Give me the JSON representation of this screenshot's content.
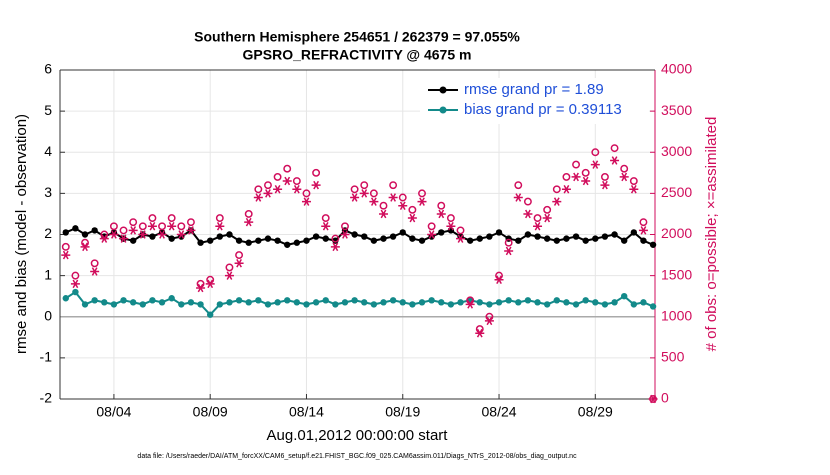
{
  "chart_data": {
    "type": "line",
    "title": "Southern Hemisphere 254651 / 262379 = 97.055%",
    "subtitle": "GPSRO_REFRACTIVITY @ 4675 m",
    "xlabel": "Aug.01,2012 00:00:00 start",
    "ylabel": "rmse and bias (model - observation)",
    "y2label": "# of obs: o=possible; ×=assimilated",
    "footnote": "data file: /Users/raeder/DAI/ATM_forcXX/CAM6_setup/f.e21.FHIST_BGC.f09_025.CAM6assim.011/Diags_NTrS_2012-08/obs_diag_output.nc",
    "x": [
      0.5,
      1,
      1.5,
      2,
      2.5,
      3,
      3.5,
      4,
      4.5,
      5,
      5.5,
      6,
      6.5,
      7,
      7.5,
      8,
      8.5,
      9,
      9.5,
      10,
      10.5,
      11,
      11.5,
      12,
      12.5,
      13,
      13.5,
      14,
      14.5,
      15,
      15.5,
      16,
      16.5,
      17,
      17.5,
      18,
      18.5,
      19,
      19.5,
      20,
      20.5,
      21,
      21.5,
      22,
      22.5,
      23,
      23.5,
      24,
      24.5,
      25,
      25.5,
      26,
      26.5,
      27,
      27.5,
      28,
      28.5,
      29,
      29.5,
      30,
      30.5,
      31
    ],
    "xlim": [
      0.2,
      31.1
    ],
    "xticks": [
      {
        "value": 3,
        "label": "08/04"
      },
      {
        "value": 8,
        "label": "08/09"
      },
      {
        "value": 13,
        "label": "08/14"
      },
      {
        "value": 18,
        "label": "08/19"
      },
      {
        "value": 23,
        "label": "08/24"
      },
      {
        "value": 28,
        "label": "08/29"
      }
    ],
    "ylim": [
      -2,
      6
    ],
    "yticks": [
      -2,
      -1,
      0,
      1,
      2,
      3,
      4,
      5,
      6
    ],
    "y2lim": [
      0,
      4000
    ],
    "y2ticks": [
      0,
      500,
      1000,
      1500,
      2000,
      2500,
      3000,
      3500,
      4000
    ],
    "grid": true,
    "zero_line_color": "#aaaaaa",
    "legend": "upper right",
    "series": [
      {
        "name": "rmse grand pr = 1.89",
        "color": "#000000",
        "marker": "dot-line",
        "values": [
          2.05,
          2.15,
          2.0,
          2.1,
          1.95,
          2.05,
          1.9,
          1.85,
          2.0,
          1.95,
          2.05,
          1.9,
          1.95,
          2.1,
          1.8,
          1.85,
          1.95,
          2.0,
          1.85,
          1.8,
          1.85,
          1.9,
          1.85,
          1.75,
          1.8,
          1.85,
          1.95,
          1.9,
          1.85,
          2.1,
          2.0,
          1.95,
          1.85,
          1.9,
          1.95,
          2.05,
          1.9,
          1.85,
          1.95,
          2.05,
          2.1,
          1.95,
          1.85,
          1.9,
          1.95,
          2.05,
          1.9,
          1.85,
          2.0,
          1.95,
          1.9,
          1.85,
          1.9,
          1.95,
          1.85,
          1.9,
          1.95,
          2.0,
          1.85,
          2.05,
          1.85,
          1.75
        ]
      },
      {
        "name": "bias grand pr = 0.39113",
        "color": "#138a8a",
        "marker": "dot-line",
        "values": [
          0.45,
          0.6,
          0.3,
          0.4,
          0.35,
          0.3,
          0.4,
          0.35,
          0.3,
          0.4,
          0.35,
          0.45,
          0.3,
          0.35,
          0.3,
          0.05,
          0.3,
          0.35,
          0.4,
          0.35,
          0.4,
          0.3,
          0.35,
          0.4,
          0.35,
          0.3,
          0.35,
          0.4,
          0.3,
          0.35,
          0.4,
          0.35,
          0.3,
          0.35,
          0.4,
          0.35,
          0.3,
          0.35,
          0.4,
          0.35,
          0.3,
          0.35,
          0.4,
          0.35,
          0.3,
          0.35,
          0.4,
          0.35,
          0.4,
          0.35,
          0.3,
          0.4,
          0.35,
          0.3,
          0.4,
          0.35,
          0.3,
          0.35,
          0.5,
          0.3,
          0.35,
          0.25
        ]
      },
      {
        "color": "#d10d5c",
        "marker": "circle",
        "axis": "y2",
        "values": [
          1850,
          1500,
          1900,
          1650,
          2000,
          2100,
          2050,
          2150,
          2100,
          2200,
          2100,
          2200,
          2100,
          2150,
          1400,
          1450,
          2200,
          1600,
          1750,
          2250,
          2550,
          2600,
          2700,
          2800,
          2650,
          2500,
          2750,
          2200,
          1950,
          2100,
          2550,
          2600,
          2500,
          2350,
          2600,
          2450,
          2300,
          2500,
          2100,
          2350,
          2200,
          2050,
          1200,
          850,
          1000,
          1500,
          1900,
          2600,
          2400,
          2200,
          2300,
          2550,
          2700,
          2850,
          2750,
          3000,
          2700,
          3050,
          2800,
          2650,
          2150,
          0
        ]
      },
      {
        "color": "#d10d5c",
        "marker": "asterisk",
        "axis": "y2",
        "values": [
          1750,
          1400,
          1850,
          1550,
          1950,
          2000,
          1950,
          2050,
          2000,
          2100,
          2000,
          2100,
          2000,
          2050,
          1350,
          1400,
          2100,
          1500,
          1650,
          2150,
          2450,
          2500,
          2550,
          2650,
          2550,
          2400,
          2600,
          2100,
          1850,
          2000,
          2450,
          2500,
          2400,
          2250,
          2450,
          2350,
          2200,
          2400,
          2000,
          2250,
          2100,
          1950,
          1150,
          800,
          950,
          1450,
          1800,
          2450,
          2250,
          2100,
          2200,
          2400,
          2550,
          2700,
          2650,
          2850,
          2600,
          2900,
          2700,
          2550,
          2050,
          0
        ]
      }
    ]
  }
}
